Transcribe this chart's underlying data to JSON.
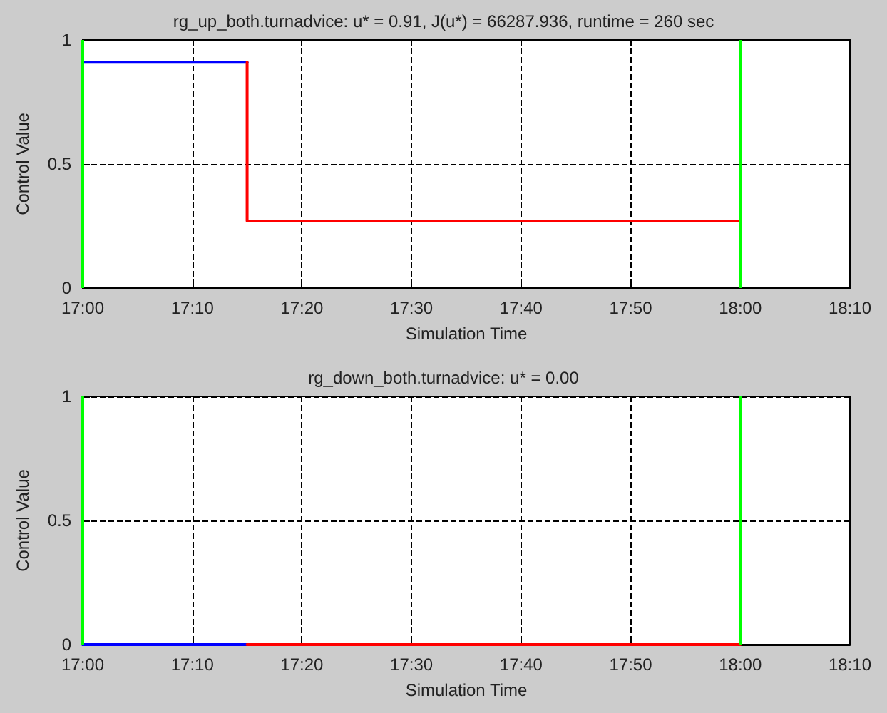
{
  "chart_data": [
    {
      "type": "line",
      "title": "rg_up_both.turnadvice: u* = 0.91, J(u*) = 66287.936, runtime = 260 sec",
      "xlabel": "Simulation Time",
      "ylabel": "Control Value",
      "xlim": [
        17,
        18.1667
      ],
      "xticks": [
        {
          "value": 17,
          "label": "17:00"
        },
        {
          "value": 17.1667,
          "label": "17:10"
        },
        {
          "value": 17.3333,
          "label": "17:20"
        },
        {
          "value": 17.5,
          "label": "17:30"
        },
        {
          "value": 17.6667,
          "label": "17:40"
        },
        {
          "value": 17.8333,
          "label": "17:50"
        },
        {
          "value": 18,
          "label": "18:00"
        },
        {
          "value": 18.1667,
          "label": "18:10"
        }
      ],
      "ylim": [
        0,
        1
      ],
      "yticks": [
        0,
        0.5,
        1
      ],
      "grid": true,
      "marker": "none",
      "line_style": "solid",
      "series": [
        {
          "color": "#0000ff",
          "x": [
            17,
            17.25
          ],
          "values": [
            0.91,
            0.91
          ]
        },
        {
          "color": "#ff0000",
          "x": [
            17.25,
            17.25,
            18
          ],
          "values": [
            0.91,
            0.27,
            0.27
          ]
        }
      ],
      "ref_lines": [
        {
          "axis": "x",
          "value": 17,
          "color": "#00ff00"
        },
        {
          "axis": "x",
          "value": 18,
          "color": "#00ff00"
        }
      ]
    },
    {
      "type": "line",
      "title": "rg_down_both.turnadvice: u* = 0.00",
      "xlabel": "Simulation Time",
      "ylabel": "Control Value",
      "xlim": [
        17,
        18.1667
      ],
      "xticks": [
        {
          "value": 17,
          "label": "17:00"
        },
        {
          "value": 17.1667,
          "label": "17:10"
        },
        {
          "value": 17.3333,
          "label": "17:20"
        },
        {
          "value": 17.5,
          "label": "17:30"
        },
        {
          "value": 17.6667,
          "label": "17:40"
        },
        {
          "value": 17.8333,
          "label": "17:50"
        },
        {
          "value": 18,
          "label": "18:00"
        },
        {
          "value": 18.1667,
          "label": "18:10"
        }
      ],
      "ylim": [
        0,
        1
      ],
      "yticks": [
        0,
        0.5,
        1
      ],
      "grid": true,
      "marker": "none",
      "line_style": "solid",
      "series": [
        {
          "color": "#0000ff",
          "x": [
            17,
            17.25
          ],
          "values": [
            0,
            0
          ]
        },
        {
          "color": "#ff0000",
          "x": [
            17.25,
            18
          ],
          "values": [
            0,
            0
          ]
        }
      ],
      "ref_lines": [
        {
          "axis": "x",
          "value": 17,
          "color": "#00ff00"
        },
        {
          "axis": "x",
          "value": 18,
          "color": "#00ff00"
        }
      ]
    }
  ]
}
